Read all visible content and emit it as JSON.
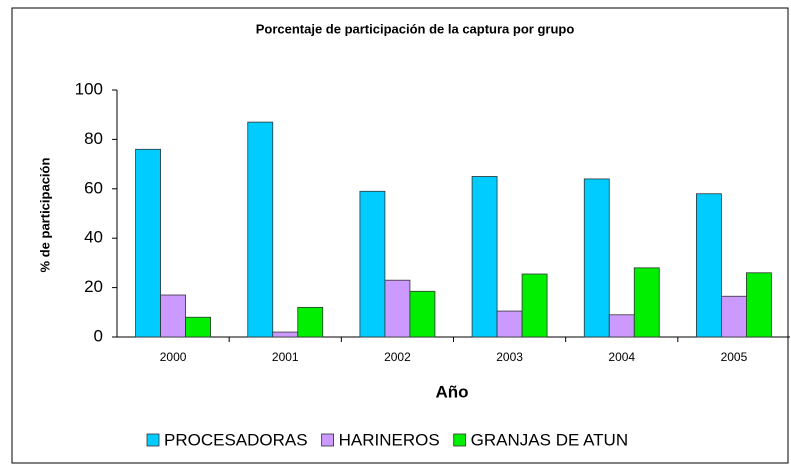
{
  "chart_data": {
    "type": "bar",
    "title": "Porcentaje de participación de la captura por grupo",
    "x_label": "Año",
    "y_label": "% de participación",
    "categories": [
      "2000",
      "2001",
      "2002",
      "2003",
      "2004",
      "2005"
    ],
    "series": [
      {
        "name": "PROCESADORAS",
        "color": "#00ccff",
        "values": [
          76,
          87,
          59,
          65,
          64,
          58
        ]
      },
      {
        "name": "HARINEROS",
        "color": "#cc99ff",
        "values": [
          17,
          2,
          23,
          10.5,
          9,
          16.5
        ]
      },
      {
        "name": "GRANJAS DE ATUN",
        "color": "#00ee00",
        "values": [
          8,
          12,
          18.5,
          25.5,
          28,
          26
        ]
      }
    ],
    "ylim": [
      0,
      100
    ],
    "yticks": [
      0,
      20,
      40,
      60,
      80,
      100
    ],
    "grid": false,
    "legend": "bottom"
  }
}
